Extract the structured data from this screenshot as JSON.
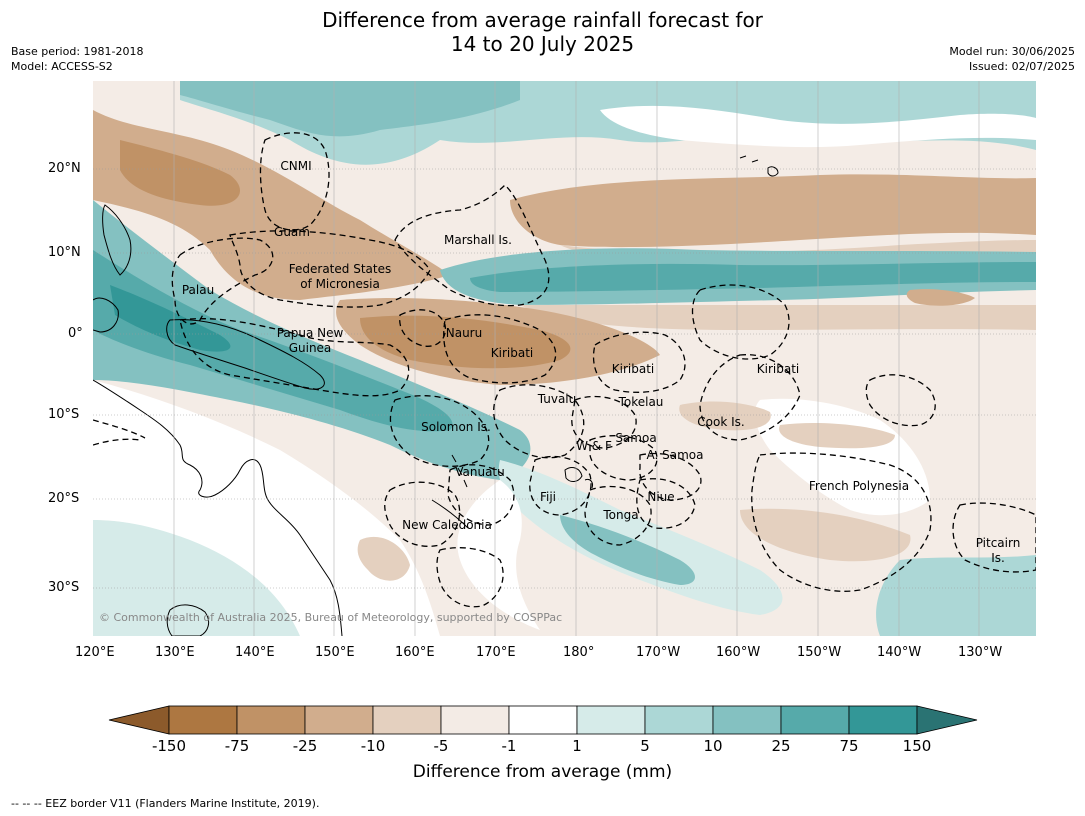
{
  "header": {
    "title_line1": "Difference from average rainfall forecast for",
    "title_line2": "14 to 20 July 2025",
    "base_period": "Base period: 1981-2018",
    "model": "Model: ACCESS-S2",
    "model_run": "Model run: 30/06/2025",
    "issued": "Issued: 02/07/2025"
  },
  "axes": {
    "lat_labels": [
      "20°N",
      "10°N",
      "0°",
      "10°S",
      "20°S",
      "30°S"
    ],
    "lon_labels": [
      "120°E",
      "130°E",
      "140°E",
      "150°E",
      "160°E",
      "170°E",
      "180°",
      "170°W",
      "160°W",
      "150°W",
      "140°W",
      "130°W"
    ]
  },
  "regions": [
    "CNMI",
    "Guam",
    "Marshall Is.",
    "Federated States",
    "of Micronesia",
    "Palau",
    "Papua New",
    "Guinea",
    "Nauru",
    "Kiribati",
    "Kiribati",
    "Kiribati",
    "Tuvalu",
    "Tokelau",
    "Cook Is.",
    "Solomon Is.",
    "W & F",
    "Samoa",
    "A. Samoa",
    "Vanuatu",
    "Fiji",
    "Niue",
    "French Polynesia",
    "Tonga",
    "New Caledonia",
    "Pitcairn",
    "Is."
  ],
  "copyright": "© Commonwealth of Australia 2025, Bureau of Meteorology, supported by COSPPac",
  "colorbar": {
    "title": "Difference from average (mm)",
    "labels": [
      "-150",
      "-75",
      "-25",
      "-10",
      "-5",
      "-1",
      "1",
      "5",
      "10",
      "25",
      "75",
      "150"
    ],
    "colors": [
      "#8c5a2b",
      "#ad7741",
      "#c09266",
      "#d1ad8d",
      "#e4d0bf",
      "#f3ebe5",
      "#ffffff",
      "#d6ebe9",
      "#acd7d6",
      "#84c1c1",
      "#56aaaa",
      "#339797",
      "#2a7373"
    ]
  },
  "footer": "--  --  -- EEZ border V11 (Flanders Marine Institute, 2019)."
}
